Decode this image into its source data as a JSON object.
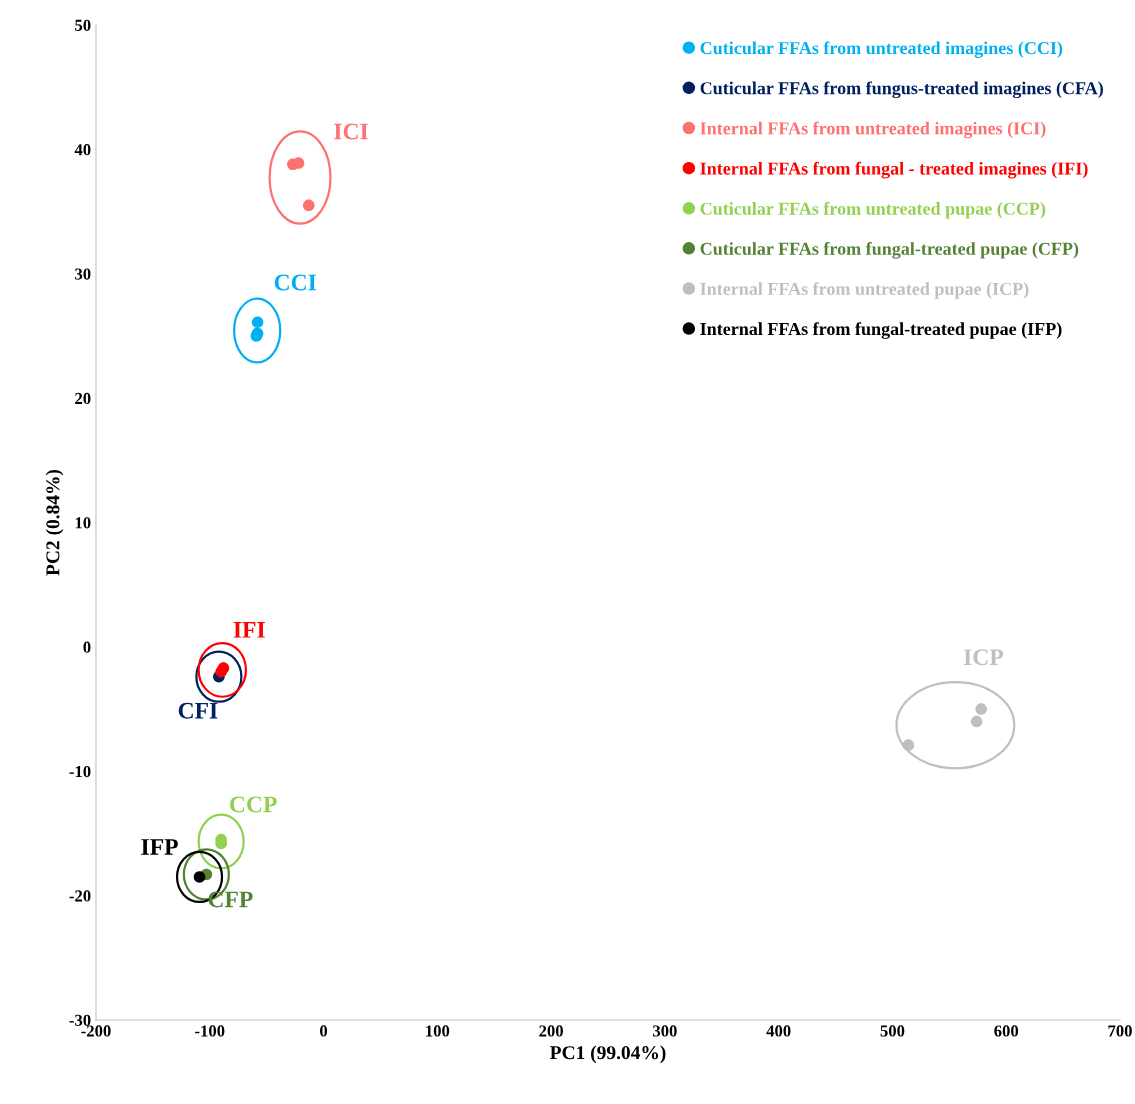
{
  "chart_data": {
    "type": "scatter",
    "xlabel": "PC1 (99.04%)",
    "ylabel": "PC2 (0.84%)",
    "xlim": [
      -200,
      700
    ],
    "xticks": [
      -200,
      -100,
      0,
      100,
      200,
      300,
      400,
      500,
      600,
      700
    ],
    "ylim": [
      -30,
      50
    ],
    "yticks": [
      -30,
      -20,
      -10,
      0,
      10,
      20,
      30,
      40,
      50
    ],
    "grid": false,
    "legend": "top right",
    "marker": "circle",
    "series": [
      {
        "name": "Cuticular FFAs from untreated imagines (CCI)",
        "color": "#00b0f0",
        "x": [
          -58,
          -58,
          -59
        ],
        "values": [
          26.1,
          25.2,
          25.0
        ]
      },
      {
        "name": "Cuticular FFAs from fungus-treated imagines (CFA)",
        "color": "#002060",
        "x": [
          -92
        ],
        "values": [
          -2.4
        ]
      },
      {
        "name": "Internal FFAs from untreated imagines (ICI)",
        "color": "#ff7070",
        "x": [
          -27,
          -22,
          -13
        ],
        "values": [
          38.8,
          38.9,
          35.5
        ]
      },
      {
        "name": "Internal FFAs from fungal - treated imagines (IFI)",
        "color": "#ff0000",
        "x": [
          -88,
          -90
        ],
        "values": [
          -1.7,
          -2.0
        ]
      },
      {
        "name": "Cuticular FFAs from untreated pupae (CCP)",
        "color": "#92d050",
        "x": [
          -90,
          -90
        ],
        "values": [
          -15.5,
          -15.8
        ]
      },
      {
        "name": "Cuticular FFAs from fungal-treated pupae (CFP)",
        "color": "#548235",
        "x": [
          -103
        ],
        "values": [
          -18.3
        ]
      },
      {
        "name": "Internal FFAs from untreated pupae (ICP)",
        "color": "#bfbfbf",
        "x": [
          514,
          574,
          578
        ],
        "values": [
          -7.9,
          -6.0,
          -5.0
        ]
      },
      {
        "name": "Internal FFAs from fungal-treated pupae (IFP)",
        "color": "#000000",
        "x": [
          -109
        ],
        "values": [
          -18.5
        ]
      }
    ],
    "annotations": [
      "CCI",
      "CFI",
      "ICI",
      "IFI",
      "CCP",
      "CFP",
      "ICP",
      "IFP"
    ]
  }
}
